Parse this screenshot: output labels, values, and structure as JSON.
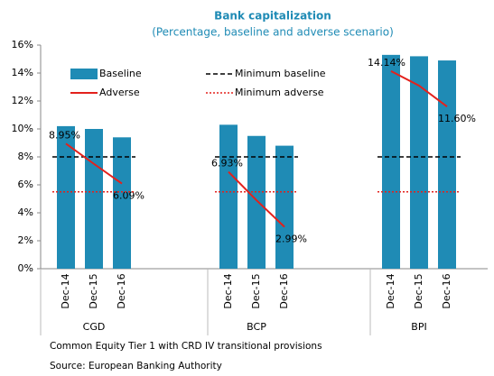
{
  "chart_data": {
    "type": "bar-line",
    "title": "Bank capitalization",
    "subtitle": "(Percentage, baseline and adverse scenario)",
    "groups": [
      "CGD",
      "BCP",
      "BPI"
    ],
    "categories": [
      "Dec-14",
      "Dec-15",
      "Dec-16",
      "Dec-14",
      "Dec-15",
      "Dec-16",
      "Dec-14",
      "Dec-15",
      "Dec-16"
    ],
    "series": [
      {
        "name": "Baseline",
        "type": "bar",
        "color": "#1f8bb5",
        "values": [
          10.2,
          10.0,
          9.4,
          10.3,
          9.5,
          8.8,
          15.3,
          15.2,
          14.9
        ]
      },
      {
        "name": "Minimum baseline",
        "type": "line",
        "style": "dashed",
        "color": "#000000",
        "values": [
          8,
          8,
          8,
          8,
          8,
          8,
          8,
          8,
          8
        ]
      },
      {
        "name": "Adverse",
        "type": "line",
        "style": "solid",
        "color": "#e3211c",
        "values": [
          8.95,
          7.5,
          6.09,
          6.93,
          4.9,
          2.99,
          14.14,
          13.1,
          11.6
        ],
        "value_labels": [
          "8.95%",
          null,
          "6.09%",
          "6.93%",
          null,
          "2.99%",
          "14.14%",
          null,
          "11.60%"
        ]
      },
      {
        "name": "Minimum adverse",
        "type": "line",
        "style": "dotted",
        "color": "#e3211c",
        "values": [
          5.5,
          5.5,
          5.5,
          5.5,
          5.5,
          5.5,
          5.5,
          5.5,
          5.5
        ]
      }
    ],
    "ylim": [
      0,
      16
    ],
    "yticks": [
      {
        "value": 0,
        "label": "0%"
      },
      {
        "value": 2,
        "label": "2%"
      },
      {
        "value": 4,
        "label": "4%"
      },
      {
        "value": 6,
        "label": "6%"
      },
      {
        "value": 8,
        "label": "8%"
      },
      {
        "value": 10,
        "label": "10%"
      },
      {
        "value": 12,
        "label": "12%"
      },
      {
        "value": 14,
        "label": "14%"
      },
      {
        "value": 16,
        "label": "16%"
      }
    ],
    "grid": false,
    "legend": "upper left",
    "notes": [
      "Common Equity Tier 1 with CRD IV transitional provisions",
      "Source: European Banking Authority"
    ]
  }
}
